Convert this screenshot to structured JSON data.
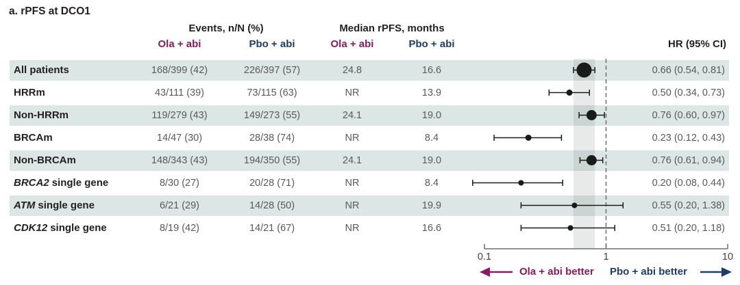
{
  "title": "a. rPFS at DCO1",
  "colors": {
    "ola_accent": "#8c1a5f",
    "pbo_accent": "#1d3d68",
    "row_stripe": "#dce6e4",
    "shaded_band": "rgba(110,120,120,0.16)",
    "axis_gray": "#6d6e71",
    "marker_black": "#1a1a1a",
    "data_text_gray": "#58595b"
  },
  "header": {
    "events_group": "Events, n/N (%)",
    "median_group": "Median rPFS, months",
    "ola_label": "Ola + abi",
    "pbo_label": "Pbo + abi",
    "hr_label": "HR (95% CI)"
  },
  "footer": {
    "ola_better": "Ola + abi better",
    "pbo_better": "Pbo + abi better"
  },
  "chart_data": {
    "type": "forest",
    "x_scale": "log",
    "x_min": 0.1,
    "x_max": 10,
    "x_ticks": [
      0.1,
      1,
      10
    ],
    "x_tick_labels": [
      "0.1",
      "1",
      "10"
    ],
    "reference_line": 1,
    "shaded_band_ci": [
      0.54,
      0.81
    ],
    "rows": [
      {
        "label_italic": "",
        "label_plain": "All patients",
        "events_ola": "168/399 (42)",
        "events_pbo": "226/397 (57)",
        "median_ola": "24.8",
        "median_pbo": "16.6",
        "hr": 0.66,
        "ci_low": 0.54,
        "ci_high": 0.81,
        "hr_text": "0.66 (0.54, 0.81)",
        "marker_r": 11,
        "striped": true
      },
      {
        "label_italic": "",
        "label_plain": "HRRm",
        "events_ola": "43/111 (39)",
        "events_pbo": "73/115 (63)",
        "median_ola": "NR",
        "median_pbo": "13.9",
        "hr": 0.5,
        "ci_low": 0.34,
        "ci_high": 0.73,
        "hr_text": "0.50 (0.34, 0.73)",
        "marker_r": 4.5,
        "striped": false
      },
      {
        "label_italic": "",
        "label_plain": "Non-HRRm",
        "events_ola": "119/279 (43)",
        "events_pbo": "149/273 (55)",
        "median_ola": "24.1",
        "median_pbo": "19.0",
        "hr": 0.76,
        "ci_low": 0.6,
        "ci_high": 0.97,
        "hr_text": "0.76 (0.60, 0.97)",
        "marker_r": 7.5,
        "striped": true
      },
      {
        "label_italic": "",
        "label_plain": "BRCAm",
        "events_ola": "14/47 (30)",
        "events_pbo": "28/38 (74)",
        "median_ola": "NR",
        "median_pbo": "8.4",
        "hr": 0.23,
        "ci_low": 0.12,
        "ci_high": 0.43,
        "hr_text": "0.23 (0.12, 0.43)",
        "marker_r": 4.5,
        "striped": false
      },
      {
        "label_italic": "",
        "label_plain": "Non-BRCAm",
        "events_ola": "148/343 (43)",
        "events_pbo": "194/350 (55)",
        "median_ola": "24.1",
        "median_pbo": "19.0",
        "hr": 0.76,
        "ci_low": 0.61,
        "ci_high": 0.94,
        "hr_text": "0.76 (0.61, 0.94)",
        "marker_r": 7.5,
        "striped": true
      },
      {
        "label_italic": "BRCA2",
        "label_plain": "single gene",
        "events_ola": "8/30 (27)",
        "events_pbo": "20/28 (71)",
        "median_ola": "NR",
        "median_pbo": "8.4",
        "hr": 0.2,
        "ci_low": 0.08,
        "ci_high": 0.44,
        "hr_text": "0.20 (0.08, 0.44)",
        "marker_r": 4,
        "striped": false
      },
      {
        "label_italic": "ATM",
        "label_plain": "single gene",
        "events_ola": "6/21 (29)",
        "events_pbo": "14/28 (50)",
        "median_ola": "NR",
        "median_pbo": "19.9",
        "hr": 0.55,
        "ci_low": 0.2,
        "ci_high": 1.38,
        "hr_text": "0.55 (0.20, 1.38)",
        "marker_r": 4,
        "striped": true
      },
      {
        "label_italic": "CDK12",
        "label_plain": "single gene",
        "events_ola": "8/19 (42)",
        "events_pbo": "14/21 (67)",
        "median_ola": "NR",
        "median_pbo": "16.6",
        "hr": 0.51,
        "ci_low": 0.2,
        "ci_high": 1.18,
        "hr_text": "0.51 (0.20, 1.18)",
        "marker_r": 4,
        "striped": false
      }
    ]
  }
}
